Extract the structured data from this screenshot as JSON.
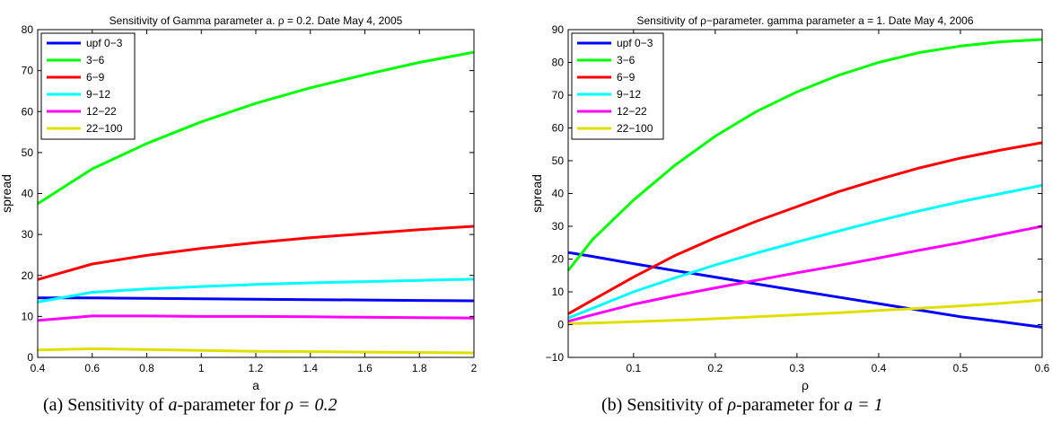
{
  "chart_data": [
    {
      "type": "line",
      "title": "Sensitivity of Gamma parameter a. ρ = 0.2. Date May 4, 2005",
      "xlabel": "a",
      "ylabel": "spread",
      "xlim": [
        0.4,
        2
      ],
      "ylim": [
        0,
        80
      ],
      "xticks": [
        "0.4",
        "0.6",
        "0.8",
        "1",
        "1.2",
        "1.4",
        "1.6",
        "1.8",
        "2"
      ],
      "yticks": [
        "0",
        "10",
        "20",
        "30",
        "40",
        "50",
        "60",
        "70",
        "80"
      ],
      "grid": false,
      "legend_position": "top-left",
      "x": [
        0.4,
        0.6,
        0.8,
        1.0,
        1.2,
        1.4,
        1.6,
        1.8,
        2.0
      ],
      "series": [
        {
          "name": "upf 0−3",
          "color": "#0000ff",
          "values": [
            14.5,
            14.5,
            14.4,
            14.3,
            14.2,
            14.1,
            14.0,
            13.9,
            13.8
          ]
        },
        {
          "name": "3−6",
          "color": "#00ff00",
          "values": [
            37.5,
            46.0,
            52.2,
            57.5,
            62.0,
            65.8,
            69.0,
            72.0,
            74.5
          ]
        },
        {
          "name": "6−9",
          "color": "#ff0000",
          "values": [
            19.0,
            22.8,
            24.9,
            26.6,
            28.0,
            29.2,
            30.2,
            31.2,
            32.0
          ]
        },
        {
          "name": "9−12",
          "color": "#00ffff",
          "values": [
            13.5,
            15.9,
            16.7,
            17.3,
            17.8,
            18.2,
            18.5,
            18.8,
            19.1
          ]
        },
        {
          "name": "12−22",
          "color": "#ff00ff",
          "values": [
            9.0,
            10.1,
            10.1,
            10.0,
            10.0,
            9.9,
            9.8,
            9.7,
            9.6
          ]
        },
        {
          "name": "22−100",
          "color": "#e0e000",
          "values": [
            1.8,
            2.1,
            1.9,
            1.7,
            1.5,
            1.4,
            1.3,
            1.2,
            1.1
          ]
        }
      ],
      "caption_prefix": "(a)  Sensitivity of ",
      "caption_var": "a",
      "caption_mid": "-parameter for ",
      "caption_expr": "ρ = 0.2"
    },
    {
      "type": "line",
      "title": "Sensitivity of ρ−parameter. gamma parameter a = 1. Date May 4, 2006",
      "xlabel": "ρ",
      "ylabel": "spread",
      "xlim": [
        0.02,
        0.6
      ],
      "ylim": [
        -10,
        90
      ],
      "xticks": [
        "0.1",
        "0.2",
        "0.3",
        "0.4",
        "0.5",
        "0.6"
      ],
      "yticks": [
        "−10",
        "0",
        "10",
        "20",
        "30",
        "40",
        "50",
        "60",
        "70",
        "80",
        "90"
      ],
      "grid": false,
      "legend_position": "top-left",
      "x": [
        0.02,
        0.05,
        0.1,
        0.15,
        0.2,
        0.25,
        0.3,
        0.35,
        0.4,
        0.45,
        0.5,
        0.55,
        0.6
      ],
      "series": [
        {
          "name": "upf 0−3",
          "color": "#0000ff",
          "values": [
            22.0,
            20.8,
            18.6,
            16.5,
            14.5,
            12.4,
            10.4,
            8.4,
            6.4,
            4.4,
            2.4,
            0.9,
            -0.8
          ]
        },
        {
          "name": "3−6",
          "color": "#00ff00",
          "values": [
            16.5,
            26.0,
            38.0,
            48.5,
            57.5,
            65.0,
            71.0,
            76.0,
            80.0,
            83.0,
            85.0,
            86.3,
            87.0
          ]
        },
        {
          "name": "6−9",
          "color": "#ff0000",
          "values": [
            3.3,
            7.5,
            14.5,
            21.0,
            26.5,
            31.5,
            36.0,
            40.5,
            44.3,
            47.8,
            50.8,
            53.3,
            55.5
          ]
        },
        {
          "name": "9−12",
          "color": "#00ffff",
          "values": [
            2.0,
            5.0,
            10.0,
            14.2,
            18.2,
            21.8,
            25.2,
            28.5,
            31.7,
            34.7,
            37.5,
            40.0,
            42.5
          ]
        },
        {
          "name": "12−22",
          "color": "#ff00ff",
          "values": [
            1.0,
            3.0,
            6.2,
            8.8,
            11.2,
            13.5,
            15.8,
            18.0,
            20.3,
            22.7,
            25.0,
            27.5,
            30.0
          ]
        },
        {
          "name": "22−100",
          "color": "#e0e000",
          "values": [
            0.3,
            0.5,
            0.9,
            1.3,
            1.8,
            2.4,
            3.0,
            3.6,
            4.3,
            5.0,
            5.7,
            6.5,
            7.5
          ]
        }
      ],
      "caption_prefix": "(b)  Sensitivity of ",
      "caption_var": "ρ",
      "caption_mid": "-parameter for ",
      "caption_expr": "a = 1"
    }
  ]
}
